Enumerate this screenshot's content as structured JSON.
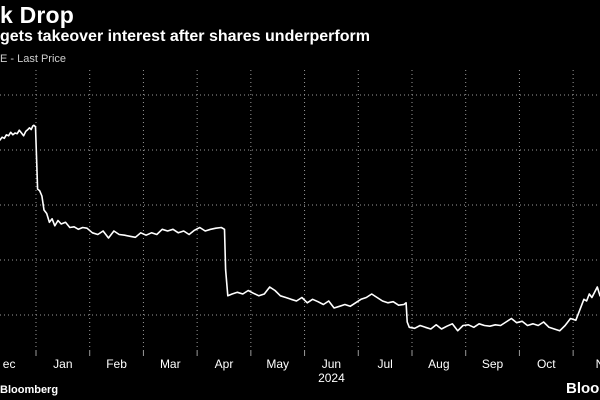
{
  "header": {
    "title": "k Drop",
    "subtitle": "gets takeover interest after shares underperform",
    "legend_label": "E - Last Price"
  },
  "footer": {
    "source": "Bloomberg",
    "brand": "Bloom"
  },
  "colors": {
    "background": "#000000",
    "line": "#ffffff",
    "grid": "#9a9a9a",
    "text": "#ffffff"
  },
  "chart_data": {
    "type": "line",
    "title": "k Drop",
    "subtitle": "gets takeover interest after shares underperform",
    "xlabel": "",
    "ylabel": "",
    "year_label": "2024",
    "x_ticks": [
      "ec",
      "Jan",
      "Feb",
      "Mar",
      "Apr",
      "May",
      "Jun",
      "Jul",
      "Aug",
      "Sep",
      "Oct",
      "N"
    ],
    "x_tick_pos": [
      -0.25,
      0.75,
      1.75,
      2.75,
      3.75,
      4.75,
      5.75,
      6.75,
      7.75,
      8.75,
      9.75,
      10.75
    ],
    "xlim": [
      -0.42,
      10.75
    ],
    "ylim": [
      0,
      8
    ],
    "grid": true,
    "legend_position": "top-left",
    "series": [
      {
        "name": "E - Last Price",
        "x": [
          -0.42,
          -0.38,
          -0.34,
          -0.3,
          -0.26,
          -0.22,
          -0.18,
          -0.14,
          -0.1,
          -0.06,
          -0.02,
          0.02,
          0.06,
          0.1,
          0.13,
          0.16,
          0.19,
          0.21,
          0.24,
          0.28,
          0.32,
          0.36,
          0.4,
          0.45,
          0.5,
          0.55,
          0.6,
          0.66,
          0.72,
          0.8,
          0.88,
          0.96,
          1.04,
          1.12,
          1.2,
          1.3,
          1.4,
          1.5,
          1.6,
          1.7,
          1.8,
          1.9,
          2.0,
          2.1,
          2.2,
          2.3,
          2.4,
          2.5,
          2.6,
          2.7,
          2.8,
          2.9,
          3.0,
          3.1,
          3.2,
          3.3,
          3.4,
          3.5,
          3.6,
          3.7,
          3.76,
          3.78,
          3.82,
          3.9,
          4.0,
          4.1,
          4.2,
          4.3,
          4.4,
          4.5,
          4.6,
          4.7,
          4.8,
          4.9,
          5.0,
          5.1,
          5.2,
          5.3,
          5.4,
          5.5,
          5.6,
          5.7,
          5.8,
          5.9,
          6.0,
          6.1,
          6.2,
          6.3,
          6.4,
          6.5,
          6.6,
          6.7,
          6.8,
          6.9,
          7.0,
          7.1,
          7.14,
          7.16,
          7.2,
          7.3,
          7.4,
          7.5,
          7.6,
          7.7,
          7.8,
          7.9,
          8.0,
          8.1,
          8.2,
          8.3,
          8.4,
          8.5,
          8.6,
          8.7,
          8.8,
          8.9,
          9.0,
          9.1,
          9.2,
          9.3,
          9.4,
          9.5,
          9.6,
          9.7,
          9.8,
          9.9,
          10.0,
          10.1,
          10.2,
          10.3,
          10.35,
          10.4,
          10.45,
          10.5,
          10.55,
          10.6,
          10.65,
          10.7,
          10.75
        ],
        "values": [
          6.0,
          6.08,
          6.05,
          6.15,
          6.12,
          6.22,
          6.15,
          6.2,
          6.18,
          6.28,
          6.2,
          6.12,
          6.25,
          6.3,
          6.35,
          6.3,
          6.4,
          6.42,
          6.38,
          4.6,
          4.55,
          4.4,
          4.0,
          3.9,
          3.65,
          3.75,
          3.55,
          3.7,
          3.6,
          3.65,
          3.5,
          3.52,
          3.45,
          3.5,
          3.48,
          3.35,
          3.3,
          3.4,
          3.2,
          3.4,
          3.3,
          3.28,
          3.25,
          3.22,
          3.35,
          3.28,
          3.35,
          3.3,
          3.45,
          3.4,
          3.45,
          3.35,
          3.4,
          3.3,
          3.42,
          3.5,
          3.4,
          3.45,
          3.48,
          3.5,
          3.45,
          2.3,
          1.55,
          1.6,
          1.65,
          1.6,
          1.7,
          1.62,
          1.55,
          1.6,
          1.8,
          1.7,
          1.55,
          1.5,
          1.45,
          1.4,
          1.5,
          1.35,
          1.45,
          1.38,
          1.3,
          1.4,
          1.2,
          1.25,
          1.3,
          1.25,
          1.35,
          1.45,
          1.5,
          1.6,
          1.5,
          1.4,
          1.35,
          1.38,
          1.28,
          1.3,
          1.35,
          0.8,
          0.65,
          0.62,
          0.7,
          0.65,
          0.6,
          0.72,
          0.6,
          0.68,
          0.75,
          0.55,
          0.7,
          0.72,
          0.65,
          0.75,
          0.7,
          0.68,
          0.72,
          0.7,
          0.8,
          0.9,
          0.78,
          0.82,
          0.7,
          0.75,
          0.7,
          0.8,
          0.65,
          0.6,
          0.55,
          0.7,
          0.9,
          0.85,
          1.05,
          1.25,
          1.45,
          1.4,
          1.6,
          1.5,
          1.65,
          1.8,
          1.55
        ]
      }
    ]
  }
}
